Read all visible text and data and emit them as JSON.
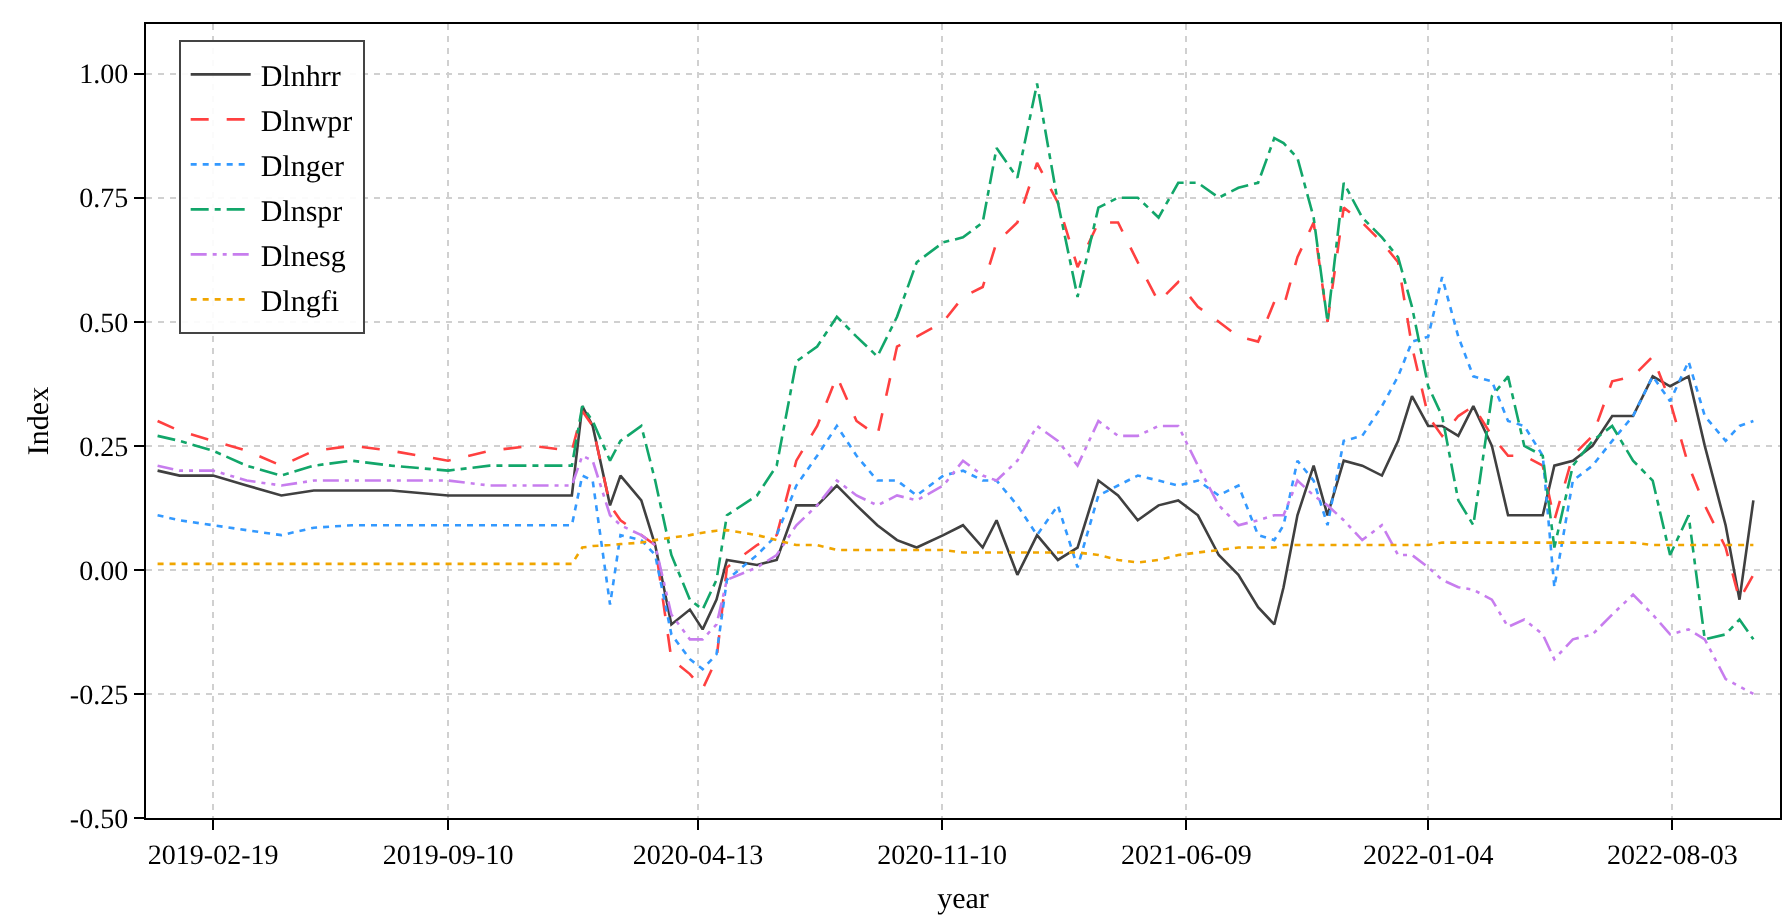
{
  "chart_data": {
    "type": "line",
    "xlabel": "year",
    "ylabel": "Index",
    "x": [
      "2019-01-02",
      "2019-01-21",
      "2019-02-19",
      "2019-03-20",
      "2019-04-19",
      "2019-05-17",
      "2019-06-19",
      "2019-07-23",
      "2019-09-10",
      "2019-10-16",
      "2019-11-21",
      "2019-12-26",
      "2020-01-04",
      "2020-01-13",
      "2020-01-28",
      "2020-02-06",
      "2020-02-24",
      "2020-03-07",
      "2020-03-21",
      "2020-04-06",
      "2020-04-17",
      "2020-04-29",
      "2020-05-08",
      "2020-06-03",
      "2020-06-20",
      "2020-07-07",
      "2020-07-25",
      "2020-08-11",
      "2020-08-28",
      "2020-09-15",
      "2020-10-02",
      "2020-10-19",
      "2020-11-11",
      "2020-11-28",
      "2020-12-15",
      "2020-12-27",
      "2021-01-14",
      "2021-01-31",
      "2021-02-18",
      "2021-03-07",
      "2021-03-25",
      "2021-04-11",
      "2021-04-28",
      "2021-05-16",
      "2021-06-02",
      "2021-06-19",
      "2021-07-07",
      "2021-07-24",
      "2021-08-10",
      "2021-08-24",
      "2021-09-01",
      "2021-09-13",
      "2021-09-27",
      "2021-10-09",
      "2021-10-23",
      "2021-11-08",
      "2021-11-25",
      "2021-12-09",
      "2021-12-21",
      "2022-01-04",
      "2022-01-16",
      "2022-01-30",
      "2022-02-12",
      "2022-02-28",
      "2022-03-14",
      "2022-03-28",
      "2022-04-13",
      "2022-04-23",
      "2022-05-09",
      "2022-05-26",
      "2022-06-12",
      "2022-06-30",
      "2022-07-17",
      "2022-08-01",
      "2022-08-17",
      "2022-08-31",
      "2022-09-18",
      "2022-09-30",
      "2022-10-12"
    ],
    "series": [
      {
        "name": "Dlnhrr",
        "color": "#404040",
        "line_style": "solid",
        "values": [
          0.2,
          0.19,
          0.19,
          0.17,
          0.15,
          0.16,
          0.16,
          0.16,
          0.15,
          0.15,
          0.15,
          0.15,
          0.33,
          0.29,
          0.13,
          0.19,
          0.14,
          0.05,
          -0.11,
          -0.08,
          -0.12,
          -0.06,
          0.02,
          0.01,
          0.02,
          0.13,
          0.13,
          0.17,
          0.13,
          0.09,
          0.06,
          0.045,
          0.07,
          0.09,
          0.045,
          0.1,
          -0.01,
          0.07,
          0.02,
          0.045,
          0.18,
          0.15,
          0.1,
          0.13,
          0.14,
          0.11,
          0.03,
          -0.01,
          -0.075,
          -0.11,
          -0.035,
          0.11,
          0.21,
          0.11,
          0.22,
          0.21,
          0.19,
          0.26,
          0.35,
          0.29,
          0.29,
          0.27,
          0.33,
          0.25,
          0.11,
          0.11,
          0.11,
          0.21,
          0.22,
          0.25,
          0.31,
          0.31,
          0.39,
          0.37,
          0.39,
          0.25,
          0.09,
          -0.06,
          0.14
        ]
      },
      {
        "name": "Dlnwpr",
        "color": "#ff4040",
        "line_style": "dashed",
        "values": [
          0.3,
          0.28,
          0.26,
          0.24,
          0.21,
          0.24,
          0.25,
          0.24,
          0.22,
          0.24,
          0.25,
          0.24,
          0.32,
          0.29,
          0.13,
          0.1,
          0.07,
          0.05,
          -0.18,
          -0.21,
          -0.24,
          -0.18,
          0.005,
          0.05,
          0.07,
          0.22,
          0.29,
          0.39,
          0.3,
          0.27,
          0.45,
          0.47,
          0.5,
          0.55,
          0.57,
          0.66,
          0.7,
          0.82,
          0.74,
          0.61,
          0.7,
          0.7,
          0.62,
          0.54,
          0.58,
          0.53,
          0.5,
          0.47,
          0.46,
          0.54,
          0.53,
          0.63,
          0.7,
          0.5,
          0.73,
          0.7,
          0.66,
          0.62,
          0.45,
          0.31,
          0.27,
          0.31,
          0.33,
          0.27,
          0.23,
          0.23,
          0.21,
          0.1,
          0.23,
          0.27,
          0.38,
          0.39,
          0.43,
          0.34,
          0.21,
          0.13,
          0.045,
          -0.06,
          -0.01
        ]
      },
      {
        "name": "Dlnger",
        "color": "#3399ff",
        "line_style": "dotted",
        "values": [
          0.11,
          0.1,
          0.09,
          0.08,
          0.07,
          0.085,
          0.09,
          0.09,
          0.09,
          0.09,
          0.09,
          0.09,
          0.19,
          0.18,
          -0.07,
          0.07,
          0.06,
          0.03,
          -0.13,
          -0.18,
          -0.2,
          -0.17,
          -0.02,
          0.03,
          0.07,
          0.17,
          0.23,
          0.29,
          0.23,
          0.18,
          0.18,
          0.15,
          0.19,
          0.2,
          0.18,
          0.18,
          0.13,
          0.07,
          0.13,
          0.005,
          0.15,
          0.17,
          0.19,
          0.18,
          0.17,
          0.18,
          0.15,
          0.17,
          0.07,
          0.06,
          0.09,
          0.22,
          0.18,
          0.09,
          0.26,
          0.27,
          0.33,
          0.39,
          0.46,
          0.47,
          0.59,
          0.47,
          0.39,
          0.38,
          0.3,
          0.29,
          0.23,
          -0.035,
          0.18,
          0.21,
          0.26,
          0.31,
          0.39,
          0.34,
          0.42,
          0.31,
          0.26,
          0.29,
          0.3
        ]
      },
      {
        "name": "Dlnspr",
        "color": "#12a66a",
        "line_style": "dashdot",
        "values": [
          0.27,
          0.26,
          0.24,
          0.21,
          0.19,
          0.21,
          0.22,
          0.21,
          0.2,
          0.21,
          0.21,
          0.21,
          0.33,
          0.3,
          0.22,
          0.26,
          0.29,
          0.18,
          0.03,
          -0.06,
          -0.08,
          -0.02,
          0.11,
          0.15,
          0.21,
          0.42,
          0.45,
          0.51,
          0.47,
          0.43,
          0.51,
          0.62,
          0.66,
          0.67,
          0.7,
          0.85,
          0.79,
          0.98,
          0.74,
          0.55,
          0.73,
          0.75,
          0.75,
          0.71,
          0.78,
          0.78,
          0.75,
          0.77,
          0.78,
          0.87,
          0.86,
          0.83,
          0.71,
          0.5,
          0.78,
          0.71,
          0.67,
          0.63,
          0.53,
          0.37,
          0.31,
          0.14,
          0.09,
          0.35,
          0.39,
          0.25,
          0.23,
          0.045,
          0.21,
          0.26,
          0.29,
          0.22,
          0.18,
          0.03,
          0.11,
          -0.14,
          -0.13,
          -0.1,
          -0.14
        ]
      },
      {
        "name": "Dlnesg",
        "color": "#c77dee",
        "line_style": "dashdotdot",
        "values": [
          0.21,
          0.2,
          0.2,
          0.18,
          0.17,
          0.18,
          0.18,
          0.18,
          0.18,
          0.17,
          0.17,
          0.17,
          0.23,
          0.22,
          0.11,
          0.09,
          0.07,
          0.05,
          -0.09,
          -0.14,
          -0.14,
          -0.11,
          -0.02,
          0.005,
          0.03,
          0.09,
          0.13,
          0.18,
          0.15,
          0.13,
          0.15,
          0.14,
          0.17,
          0.22,
          0.19,
          0.18,
          0.22,
          0.29,
          0.26,
          0.21,
          0.3,
          0.27,
          0.27,
          0.29,
          0.29,
          0.21,
          0.13,
          0.09,
          0.1,
          0.11,
          0.11,
          0.18,
          0.15,
          0.13,
          0.1,
          0.06,
          0.09,
          0.03,
          0.03,
          0.005,
          -0.02,
          -0.035,
          -0.04,
          -0.06,
          -0.115,
          -0.1,
          -0.13,
          -0.18,
          -0.14,
          -0.13,
          -0.09,
          -0.05,
          -0.09,
          -0.13,
          -0.12,
          -0.14,
          -0.22,
          -0.235,
          -0.25
        ]
      },
      {
        "name": "Dlngfi",
        "color": "#f0a500",
        "line_style": "dotted",
        "values": [
          0.012,
          0.012,
          0.012,
          0.012,
          0.012,
          0.012,
          0.012,
          0.012,
          0.012,
          0.012,
          0.012,
          0.012,
          0.045,
          0.048,
          0.05,
          0.052,
          0.055,
          0.06,
          0.065,
          0.07,
          0.075,
          0.079,
          0.08,
          0.07,
          0.06,
          0.05,
          0.05,
          0.04,
          0.04,
          0.04,
          0.04,
          0.04,
          0.04,
          0.035,
          0.035,
          0.035,
          0.035,
          0.035,
          0.035,
          0.035,
          0.03,
          0.02,
          0.015,
          0.02,
          0.03,
          0.035,
          0.04,
          0.045,
          0.045,
          0.045,
          0.05,
          0.05,
          0.05,
          0.05,
          0.05,
          0.05,
          0.05,
          0.05,
          0.05,
          0.05,
          0.055,
          0.055,
          0.055,
          0.055,
          0.055,
          0.055,
          0.055,
          0.055,
          0.055,
          0.055,
          0.055,
          0.055,
          0.05,
          0.05,
          0.05,
          0.05,
          0.05,
          0.05,
          0.05
        ]
      }
    ],
    "xlim": [
      "2018-12-23",
      "2022-11-04"
    ],
    "xticks": [
      {
        "value": "2019-02-19",
        "label": "2019-02-19"
      },
      {
        "value": "2019-09-10",
        "label": "2019-09-10"
      },
      {
        "value": "2020-04-13",
        "label": "2020-04-13"
      },
      {
        "value": "2020-11-10",
        "label": "2020-11-10"
      },
      {
        "value": "2021-06-09",
        "label": "2021-06-09"
      },
      {
        "value": "2022-01-04",
        "label": "2022-01-04"
      },
      {
        "value": "2022-08-03",
        "label": "2022-08-03"
      }
    ],
    "ylim": [
      -0.5,
      1.1
    ],
    "yticks": [
      {
        "value": -0.5,
        "label": "-0.50"
      },
      {
        "value": -0.25,
        "label": "-0.25"
      },
      {
        "value": 0,
        "label": "0.00"
      },
      {
        "value": 0.25,
        "label": "0.25"
      },
      {
        "value": 0.5,
        "label": "0.50"
      },
      {
        "value": 0.75,
        "label": "0.75"
      },
      {
        "value": 1,
        "label": "1.00"
      }
    ],
    "grid": true,
    "legend": "top left",
    "marker": "none"
  }
}
